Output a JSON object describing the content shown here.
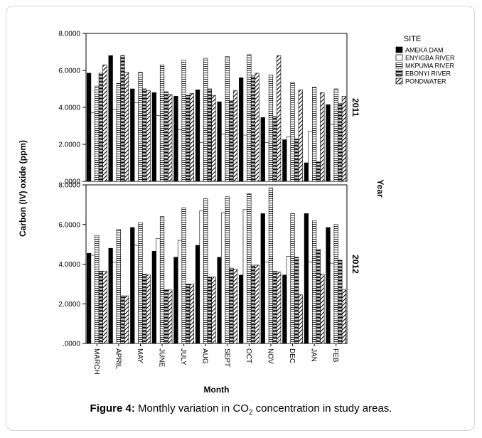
{
  "caption": {
    "label": "Figure 4:",
    "text_before": "Monthly variation in CO",
    "subscript": "2",
    "text_after": " concentration in study areas."
  },
  "chart_data": {
    "type": "bar",
    "xlabel": "Month",
    "ylabel": "Carbon (IV) oxide (ppm)",
    "panel_axis_label": "Year",
    "legend_title": "SITE",
    "legend_position": "top-right",
    "ylim": [
      0,
      8
    ],
    "yticks": [
      ".0000",
      "2.0000",
      "4.0000",
      "6.0000",
      "8.0000"
    ],
    "categories": [
      "MARCH",
      "APRIL",
      "MAY",
      "JUNE",
      "JULY",
      "AUG",
      "SEPT",
      "OCT",
      "NOV",
      "DEC",
      "JAN",
      "FEB"
    ],
    "series_styles": [
      {
        "name": "AMEKA DAM",
        "pattern": "solid"
      },
      {
        "name": "ENYIGBA RIVER",
        "pattern": "empty"
      },
      {
        "name": "MKPUMA RIVER",
        "pattern": "hatch-h"
      },
      {
        "name": "EBONYI RIVER",
        "pattern": "dense-h"
      },
      {
        "name": "PONDWATER",
        "pattern": "diagonal"
      }
    ],
    "panels": [
      {
        "year": "2011",
        "series": [
          {
            "name": "AMEKA DAM",
            "values": [
              5.85,
              6.8,
              5.0,
              4.8,
              4.6,
              4.95,
              4.3,
              5.6,
              3.45,
              2.25,
              1.0,
              4.15
            ]
          },
          {
            "name": "ENYIGBA RIVER",
            "values": [
              3.7,
              3.9,
              4.25,
              3.55,
              2.8,
              2.1,
              2.55,
              2.5,
              2.1,
              2.4,
              2.7,
              3.1
            ]
          },
          {
            "name": "MKPUMA RIVER",
            "values": [
              5.15,
              5.3,
              5.9,
              6.3,
              6.55,
              6.65,
              6.75,
              6.85,
              5.75,
              5.35,
              5.1,
              5.0
            ]
          },
          {
            "name": "EBONYI RIVER",
            "values": [
              5.85,
              6.8,
              5.0,
              4.85,
              4.65,
              5.0,
              4.35,
              5.7,
              3.5,
              2.3,
              1.05,
              4.2
            ]
          },
          {
            "name": "PONDWATER",
            "values": [
              6.3,
              5.9,
              4.9,
              4.7,
              4.75,
              4.65,
              4.9,
              5.85,
              6.8,
              4.95,
              4.8,
              4.6
            ]
          }
        ]
      },
      {
        "year": "2012",
        "series": [
          {
            "name": "AMEKA DAM",
            "values": [
              4.55,
              4.8,
              5.85,
              4.65,
              4.35,
              4.95,
              4.35,
              3.45,
              6.55,
              3.45,
              6.55,
              5.85
            ]
          },
          {
            "name": "ENYIGBA RIVER",
            "values": [
              4.45,
              4.1,
              4.95,
              5.3,
              5.2,
              6.7,
              6.6,
              6.75,
              4.1,
              4.4,
              4.1,
              4.05
            ]
          },
          {
            "name": "MKPUMA RIVER",
            "values": [
              5.45,
              5.75,
              6.1,
              6.4,
              6.85,
              7.3,
              7.4,
              7.55,
              7.85,
              6.55,
              6.2,
              6.0
            ]
          },
          {
            "name": "EBONYI RIVER",
            "values": [
              3.65,
              2.4,
              3.5,
              2.7,
              3.0,
              3.35,
              3.8,
              3.95,
              3.65,
              4.35,
              4.75,
              4.2
            ]
          },
          {
            "name": "PONDWATER",
            "values": [
              3.65,
              2.4,
              3.45,
              2.7,
              3.0,
              3.35,
              3.75,
              3.95,
              3.6,
              2.45,
              3.5,
              2.7
            ]
          }
        ]
      }
    ]
  }
}
